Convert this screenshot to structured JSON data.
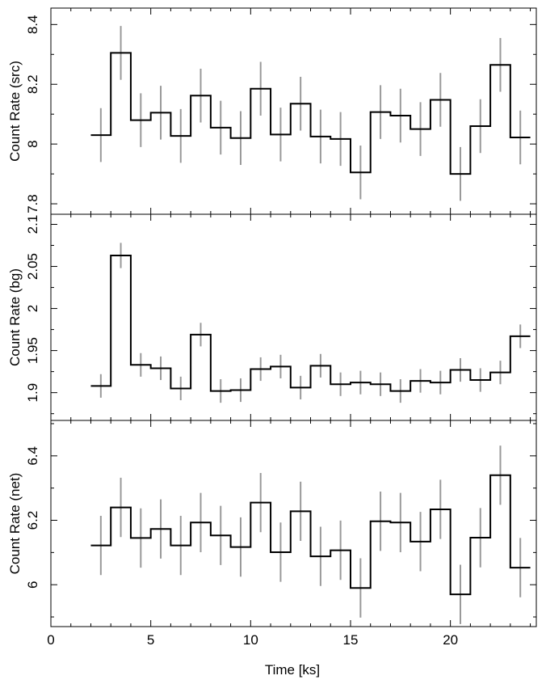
{
  "chart_data": {
    "type": "line",
    "style": "step-with-errorbars",
    "xlabel": "Time [ks]",
    "xlim": [
      0,
      24.3
    ],
    "xticks": [
      0,
      5,
      10,
      15,
      20
    ],
    "bin_edges": [
      2,
      3,
      4,
      5,
      6,
      7,
      8,
      9,
      10,
      11,
      12,
      13,
      14,
      15,
      16,
      17,
      18,
      19,
      20,
      21,
      22,
      23,
      24
    ],
    "x": [
      2.5,
      3.5,
      4.5,
      5.5,
      6.5,
      7.5,
      8.5,
      9.5,
      10.5,
      11.5,
      12.5,
      13.5,
      14.5,
      15.5,
      16.5,
      17.5,
      18.5,
      19.5,
      20.5,
      21.5,
      22.5,
      23.5
    ],
    "panels": [
      {
        "ylabel": "Count Rate (src)",
        "ylim": [
          7.765,
          8.455
        ],
        "yticks": [
          7.8,
          8,
          8.2,
          8.4
        ],
        "ytick_labels": [
          "7.8",
          "8",
          "8.2",
          "8.4"
        ],
        "values": [
          8.03,
          8.305,
          8.08,
          8.105,
          8.027,
          8.162,
          8.055,
          8.02,
          8.185,
          8.032,
          8.135,
          8.025,
          8.017,
          7.905,
          8.107,
          8.095,
          8.05,
          8.148,
          7.9,
          8.06,
          8.265,
          8.022
        ],
        "errors": [
          0.09,
          0.09,
          0.09,
          0.09,
          0.09,
          0.09,
          0.09,
          0.09,
          0.09,
          0.09,
          0.09,
          0.09,
          0.09,
          0.09,
          0.09,
          0.09,
          0.09,
          0.09,
          0.09,
          0.09,
          0.09,
          0.09
        ]
      },
      {
        "ylabel": "Count Rate (bg)",
        "ylim": [
          1.867,
          2.112
        ],
        "yticks": [
          1.9,
          1.95,
          2,
          2.05,
          2.1
        ],
        "ytick_labels": [
          "1.9",
          "1.95",
          "2",
          "2.05",
          "2.1"
        ],
        "values": [
          1.908,
          2.063,
          1.933,
          1.929,
          1.905,
          1.969,
          1.902,
          1.903,
          1.928,
          1.931,
          1.906,
          1.932,
          1.91,
          1.912,
          1.91,
          1.902,
          1.914,
          1.912,
          1.927,
          1.915,
          1.924,
          1.967
        ],
        "errors": [
          0.014,
          0.015,
          0.014,
          0.014,
          0.014,
          0.014,
          0.014,
          0.014,
          0.014,
          0.014,
          0.014,
          0.014,
          0.014,
          0.014,
          0.014,
          0.014,
          0.014,
          0.014,
          0.014,
          0.014,
          0.014,
          0.014
        ]
      },
      {
        "ylabel": "Count Rate (net)",
        "ylim": [
          5.87,
          6.51
        ],
        "yticks": [
          6,
          6.2,
          6.4
        ],
        "ytick_labels": [
          "6",
          "6.2",
          "6.4"
        ],
        "values": [
          6.122,
          6.24,
          6.145,
          6.173,
          6.122,
          6.193,
          6.153,
          6.117,
          6.255,
          6.101,
          6.228,
          6.088,
          6.107,
          5.99,
          6.197,
          6.193,
          6.134,
          6.234,
          5.97,
          6.146,
          6.34,
          6.053
        ],
        "errors": [
          0.092,
          0.092,
          0.092,
          0.092,
          0.092,
          0.092,
          0.092,
          0.092,
          0.092,
          0.092,
          0.092,
          0.092,
          0.092,
          0.092,
          0.092,
          0.092,
          0.092,
          0.092,
          0.092,
          0.092,
          0.092,
          0.092
        ]
      }
    ]
  }
}
